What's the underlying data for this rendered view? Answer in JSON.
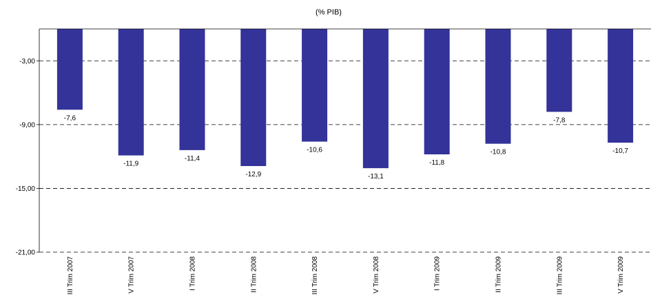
{
  "chart_data": {
    "type": "bar",
    "title": "(% PIB)",
    "xlabel": "",
    "ylabel": "",
    "categories": [
      "III Trim 2007",
      "V Trim 2007",
      "I Trim 2008",
      "II Trim 2008",
      "III Trim 2008",
      "V Trim 2008",
      "I Trim 2009",
      "II Trim 2009",
      "III Trim 2009",
      "V Trim 2009"
    ],
    "values": [
      -7.6,
      -11.9,
      -11.4,
      -12.9,
      -10.6,
      -13.1,
      -11.8,
      -10.8,
      -7.8,
      -10.7
    ],
    "value_labels": [
      "-7,6",
      "-11,9",
      "-11,4",
      "-12,9",
      "-10,6",
      "-13,1",
      "-11,8",
      "-10,8",
      "-7,8",
      "-10,7"
    ],
    "ylim": [
      -21,
      0
    ],
    "y_ticks": [
      -3,
      -9,
      -15,
      -21
    ],
    "y_tick_labels": [
      "-3,00",
      "-9,00",
      "-15,00",
      "-21,00"
    ],
    "grid": true,
    "bar_color": "#333399"
  }
}
